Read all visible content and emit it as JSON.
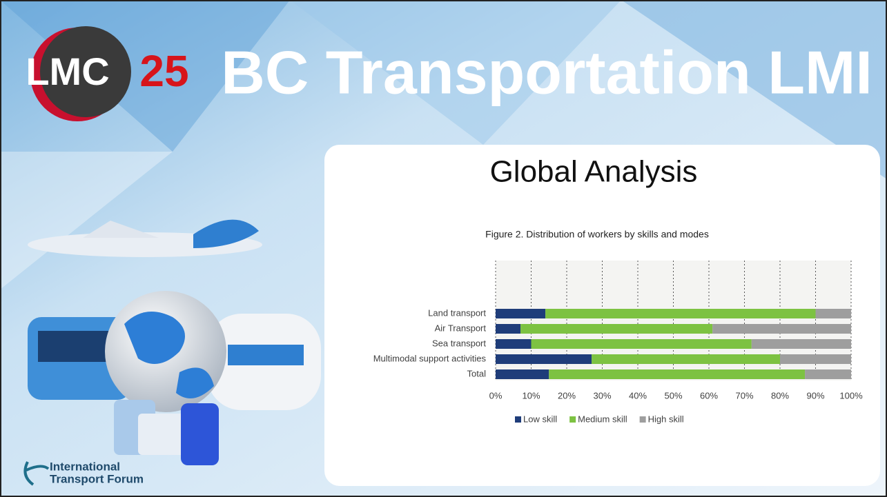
{
  "slide": {
    "title": "BC Transportation LMI",
    "logo": {
      "left": "LMC",
      "right": "25"
    },
    "subtitle": "Global Analysis",
    "footer_logo": {
      "line1": "International",
      "line2": "Transport Forum"
    }
  },
  "chart_data": {
    "type": "bar",
    "orientation": "horizontal",
    "stacked": true,
    "title": "Figure 2. Distribution of workers by skills and modes",
    "categories": [
      "Land transport",
      "Air Transport",
      "Sea transport",
      "Multimodal support activities",
      "Total"
    ],
    "series": [
      {
        "name": "Low skill",
        "color": "#1f3d7a",
        "values": [
          14,
          7,
          10,
          27,
          15
        ]
      },
      {
        "name": "Medium skill",
        "color": "#7dc242",
        "values": [
          76,
          54,
          62,
          53,
          72
        ]
      },
      {
        "name": "High skill",
        "color": "#9e9e9e",
        "values": [
          10,
          39,
          28,
          20,
          13
        ]
      }
    ],
    "xlim": [
      0,
      100
    ],
    "xticks": [
      {
        "value": 0,
        "label": "0%"
      },
      {
        "value": 10,
        "label": "10%"
      },
      {
        "value": 20,
        "label": "20%"
      },
      {
        "value": 30,
        "label": "30%"
      },
      {
        "value": 40,
        "label": "40%"
      },
      {
        "value": 50,
        "label": "50%"
      },
      {
        "value": 60,
        "label": "60%"
      },
      {
        "value": 70,
        "label": "70%"
      },
      {
        "value": 80,
        "label": "80%"
      },
      {
        "value": 90,
        "label": "90%"
      },
      {
        "value": 100,
        "label": "100%"
      }
    ],
    "grid": true,
    "legend": "bottom"
  }
}
